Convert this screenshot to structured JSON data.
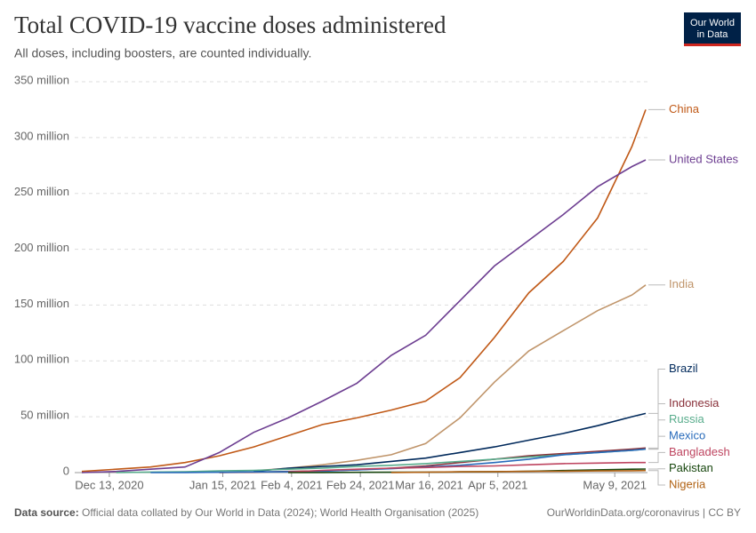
{
  "chart_data": {
    "type": "line",
    "title": "Total COVID-19 vaccine doses administered",
    "subtitle": "All doses, including boosters, are counted individually.",
    "x": [
      "2020-12-05",
      "2020-12-15",
      "2020-12-25",
      "2021-01-04",
      "2021-01-14",
      "2021-01-24",
      "2021-02-03",
      "2021-02-13",
      "2021-02-23",
      "2021-03-05",
      "2021-03-15",
      "2021-03-25",
      "2021-04-04",
      "2021-04-14",
      "2021-04-24",
      "2021-05-04",
      "2021-05-14",
      "2021-05-18"
    ],
    "xlim": [
      "2020-12-05",
      "2021-05-18"
    ],
    "xticks": [
      {
        "value": "2020-12-13",
        "label": "Dec 13, 2020"
      },
      {
        "value": "2021-01-15",
        "label": "Jan 15, 2021"
      },
      {
        "value": "2021-02-04",
        "label": "Feb 4, 2021"
      },
      {
        "value": "2021-02-24",
        "label": "Feb 24, 2021"
      },
      {
        "value": "2021-03-16",
        "label": "Mar 16, 2021"
      },
      {
        "value": "2021-04-05",
        "label": "Apr 5, 2021"
      },
      {
        "value": "2021-05-09",
        "label": "May 9, 2021"
      }
    ],
    "ylim": [
      0,
      350
    ],
    "yticks": [
      0,
      {
        "value": 50,
        "label": "50 million"
      },
      {
        "value": 100,
        "label": "100 million"
      },
      {
        "value": 150,
        "label": "150 million"
      },
      {
        "value": 200,
        "label": "200 million"
      },
      {
        "value": 250,
        "label": "250 million"
      },
      {
        "value": 300,
        "label": "300 million"
      },
      {
        "value": 350,
        "label": "350 million"
      }
    ],
    "grid": true,
    "series": [
      {
        "name": "China",
        "color": "#c05917",
        "values": [
          1,
          3,
          5,
          9,
          15,
          23,
          33,
          43,
          49,
          56,
          64,
          85,
          121,
          161,
          189,
          228,
          292,
          325
        ]
      },
      {
        "name": "United States",
        "color": "#6d3e91",
        "values": [
          0,
          1,
          3,
          5,
          18,
          36,
          49,
          64,
          80,
          105,
          123,
          154,
          185,
          208,
          231,
          256,
          274,
          280
        ]
      },
      {
        "name": "India",
        "color": "#c0956b",
        "values": [
          null,
          null,
          null,
          null,
          null,
          1.5,
          4,
          7,
          11,
          16,
          26,
          49,
          81,
          109,
          127,
          145,
          159,
          168
        ]
      },
      {
        "name": "Brazil",
        "color": "#00295b",
        "values": [
          null,
          null,
          null,
          null,
          null,
          1,
          4,
          5.5,
          7,
          10,
          13,
          18,
          23,
          29,
          35,
          42,
          50,
          53
        ]
      },
      {
        "name": "Indonesia",
        "color": "#883039",
        "values": [
          null,
          null,
          null,
          null,
          0.1,
          0.3,
          1,
          1.5,
          2.5,
          4,
          6,
          9,
          12,
          15,
          17,
          19,
          21,
          22
        ]
      },
      {
        "name": "Russia",
        "color": "#58ac8c",
        "values": [
          null,
          0.1,
          0.5,
          0.8,
          1.5,
          2,
          3,
          4,
          5.5,
          6.5,
          8,
          10,
          12,
          14,
          16,
          18,
          20,
          21
        ]
      },
      {
        "name": "Mexico",
        "color": "#286bbb",
        "values": [
          null,
          null,
          0.01,
          0.05,
          0.3,
          0.6,
          0.7,
          1.2,
          2.5,
          3.5,
          5,
          6.5,
          9,
          12,
          16,
          18,
          20,
          21
        ]
      },
      {
        "name": "Bangladesh",
        "color": "#be4560",
        "values": [
          null,
          null,
          null,
          null,
          null,
          null,
          0.5,
          2,
          3,
          4,
          4.5,
          5.5,
          6,
          7,
          8,
          8.5,
          9,
          9
        ]
      },
      {
        "name": "Pakistan",
        "color": "#18470f",
        "values": [
          null,
          null,
          null,
          null,
          null,
          null,
          0.01,
          0.1,
          0.2,
          0.3,
          0.4,
          0.6,
          0.8,
          1.2,
          1.8,
          2.5,
          3,
          3.2
        ]
      },
      {
        "name": "Nigeria",
        "color": "#b16214",
        "values": [
          null,
          null,
          null,
          null,
          null,
          null,
          null,
          null,
          null,
          0.05,
          0.3,
          0.7,
          0.9,
          1.1,
          1.2,
          1.5,
          1.7,
          1.8
        ]
      }
    ]
  },
  "logo": [
    "Our World",
    "in Data"
  ],
  "footer": {
    "source_label": "Data source:",
    "source": "Official data collated by Our World in Data (2024); World Health Organisation (2025)",
    "url": "OurWorldinData.org/coronavirus | CC BY"
  }
}
